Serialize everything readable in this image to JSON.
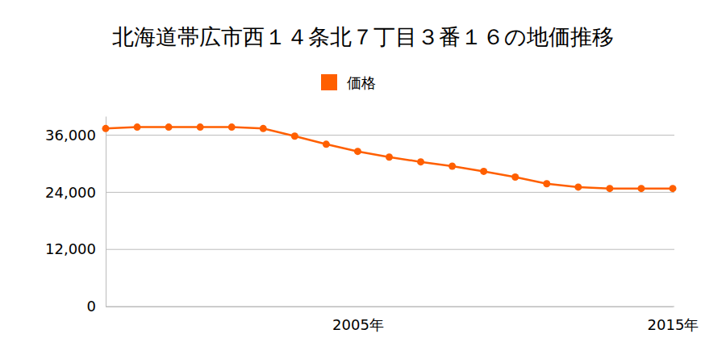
{
  "chart_data": {
    "type": "line",
    "title": "北海道帯広市西１４条北７丁目３番１６の地価推移",
    "categories": [
      null,
      null,
      null,
      null,
      null,
      null,
      null,
      null,
      "2005年",
      null,
      null,
      null,
      null,
      null,
      null,
      null,
      null,
      null,
      "2015年"
    ],
    "series": [
      {
        "name": "価格",
        "color": "#ff5f00",
        "marker": "circle",
        "values": [
          37400,
          37700,
          37700,
          37700,
          37700,
          37400,
          35800,
          34100,
          32600,
          31400,
          30400,
          29500,
          28400,
          27200,
          25800,
          25100,
          24800,
          24800,
          24800
        ]
      }
    ],
    "ylim": [
      0,
      40000
    ],
    "yticks": [
      0,
      {
        "value": 12000,
        "label": "12,000"
      },
      {
        "value": 24000,
        "label": "24,000"
      },
      {
        "value": 36000,
        "label": "36,000"
      }
    ],
    "grid": true,
    "legend": "top"
  }
}
